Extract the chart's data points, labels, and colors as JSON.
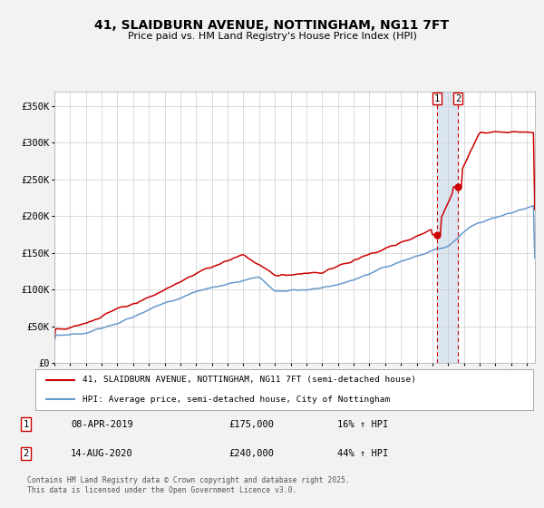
{
  "title": "41, SLAIDBURN AVENUE, NOTTINGHAM, NG11 7FT",
  "subtitle": "Price paid vs. HM Land Registry's House Price Index (HPI)",
  "legend_line1": "41, SLAIDBURN AVENUE, NOTTINGHAM, NG11 7FT (semi-detached house)",
  "legend_line2": "HPI: Average price, semi-detached house, City of Nottingham",
  "sale1_date": "08-APR-2019",
  "sale1_price": "£175,000",
  "sale1_hpi": "16% ↑ HPI",
  "sale1_year": 2019.27,
  "sale1_value": 175000,
  "sale2_date": "14-AUG-2020",
  "sale2_price": "£240,000",
  "sale2_hpi": "44% ↑ HPI",
  "sale2_year": 2020.62,
  "sale2_value": 240000,
  "red_color": "#cc0000",
  "blue_color": "#6699cc",
  "background_color": "#f2f2f2",
  "plot_bg_color": "#ffffff",
  "grid_color": "#cccccc",
  "vshade_color": "#dce6f1",
  "ylim": [
    0,
    370000
  ],
  "yticks": [
    0,
    50000,
    100000,
    150000,
    200000,
    250000,
    300000,
    350000
  ],
  "footer": "Contains HM Land Registry data © Crown copyright and database right 2025.\nThis data is licensed under the Open Government Licence v3.0."
}
